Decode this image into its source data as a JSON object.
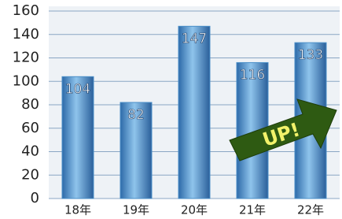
{
  "chart_data": {
    "type": "bar",
    "categories": [
      "18年",
      "19年",
      "20年",
      "21年",
      "22年"
    ],
    "values": [
      104,
      82,
      147,
      116,
      133
    ],
    "color": "#4a8fc8",
    "ylim": [
      0,
      160
    ],
    "yticks": [
      0,
      20,
      40,
      60,
      80,
      100,
      120,
      140,
      160
    ],
    "grid": true,
    "annotation": "UP!"
  }
}
